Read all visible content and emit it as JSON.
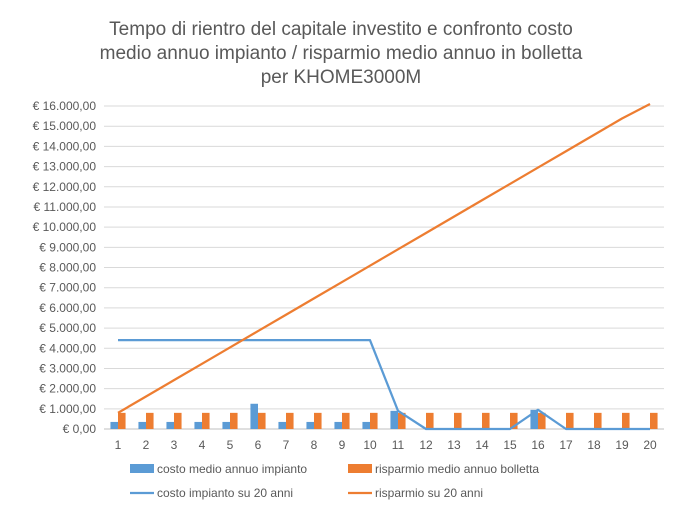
{
  "chart_data": {
    "type": "bar",
    "title_lines": [
      "Tempo di rientro del capitale investito e confronto costo",
      "medio annuo impianto / risparmio medio annuo in bolletta",
      "per KHOME3000M"
    ],
    "xlabel": "",
    "ylabel": "",
    "categories": [
      "1",
      "2",
      "3",
      "4",
      "5",
      "6",
      "7",
      "8",
      "9",
      "10",
      "11",
      "12",
      "13",
      "14",
      "15",
      "16",
      "17",
      "18",
      "19",
      "20"
    ],
    "ylim": [
      0,
      16000
    ],
    "yticks": [
      0,
      1000,
      2000,
      3000,
      4000,
      5000,
      6000,
      7000,
      8000,
      9000,
      10000,
      11000,
      12000,
      13000,
      14000,
      15000,
      16000
    ],
    "ytick_labels": [
      "€ 0,00",
      "€ 1.000,00",
      "€ 2.000,00",
      "€ 3.000,00",
      "€ 4.000,00",
      "€ 5.000,00",
      "€ 6.000,00",
      "€ 7.000,00",
      "€ 8.000,00",
      "€ 9.000,00",
      "€ 10.000,00",
      "€ 11.000,00",
      "€ 12.000,00",
      "€ 13.000,00",
      "€ 14.000,00",
      "€ 15.000,00",
      "€ 16.000,00"
    ],
    "grid": true,
    "legend_position": "bottom",
    "series": [
      {
        "name": "costo medio annuo impianto",
        "kind": "bar",
        "color": "#5b9bd5",
        "values": [
          350,
          350,
          350,
          350,
          350,
          1250,
          350,
          350,
          350,
          350,
          900,
          0,
          0,
          0,
          0,
          950,
          0,
          0,
          0,
          0
        ]
      },
      {
        "name": "risparmio medio  annuo bolletta",
        "kind": "bar",
        "color": "#ed7d31",
        "values": [
          800,
          800,
          800,
          800,
          800,
          800,
          800,
          800,
          800,
          800,
          800,
          800,
          800,
          800,
          800,
          800,
          800,
          800,
          800,
          800
        ]
      },
      {
        "name": "costo impianto su 20 anni",
        "kind": "line",
        "color": "#5b9bd5",
        "values": [
          4400,
          4400,
          4400,
          4400,
          4400,
          4400,
          4400,
          4400,
          4400,
          4400,
          900,
          0,
          0,
          0,
          0,
          950,
          0,
          0,
          0,
          0
        ]
      },
      {
        "name": "risparmio su 20 anni",
        "kind": "line",
        "color": "#ed7d31",
        "values": [
          800,
          1610,
          2420,
          3230,
          4040,
          4850,
          5660,
          6470,
          7280,
          8090,
          8900,
          9710,
          10520,
          11330,
          12140,
          12950,
          13760,
          14570,
          15380,
          16100
        ]
      }
    ]
  }
}
